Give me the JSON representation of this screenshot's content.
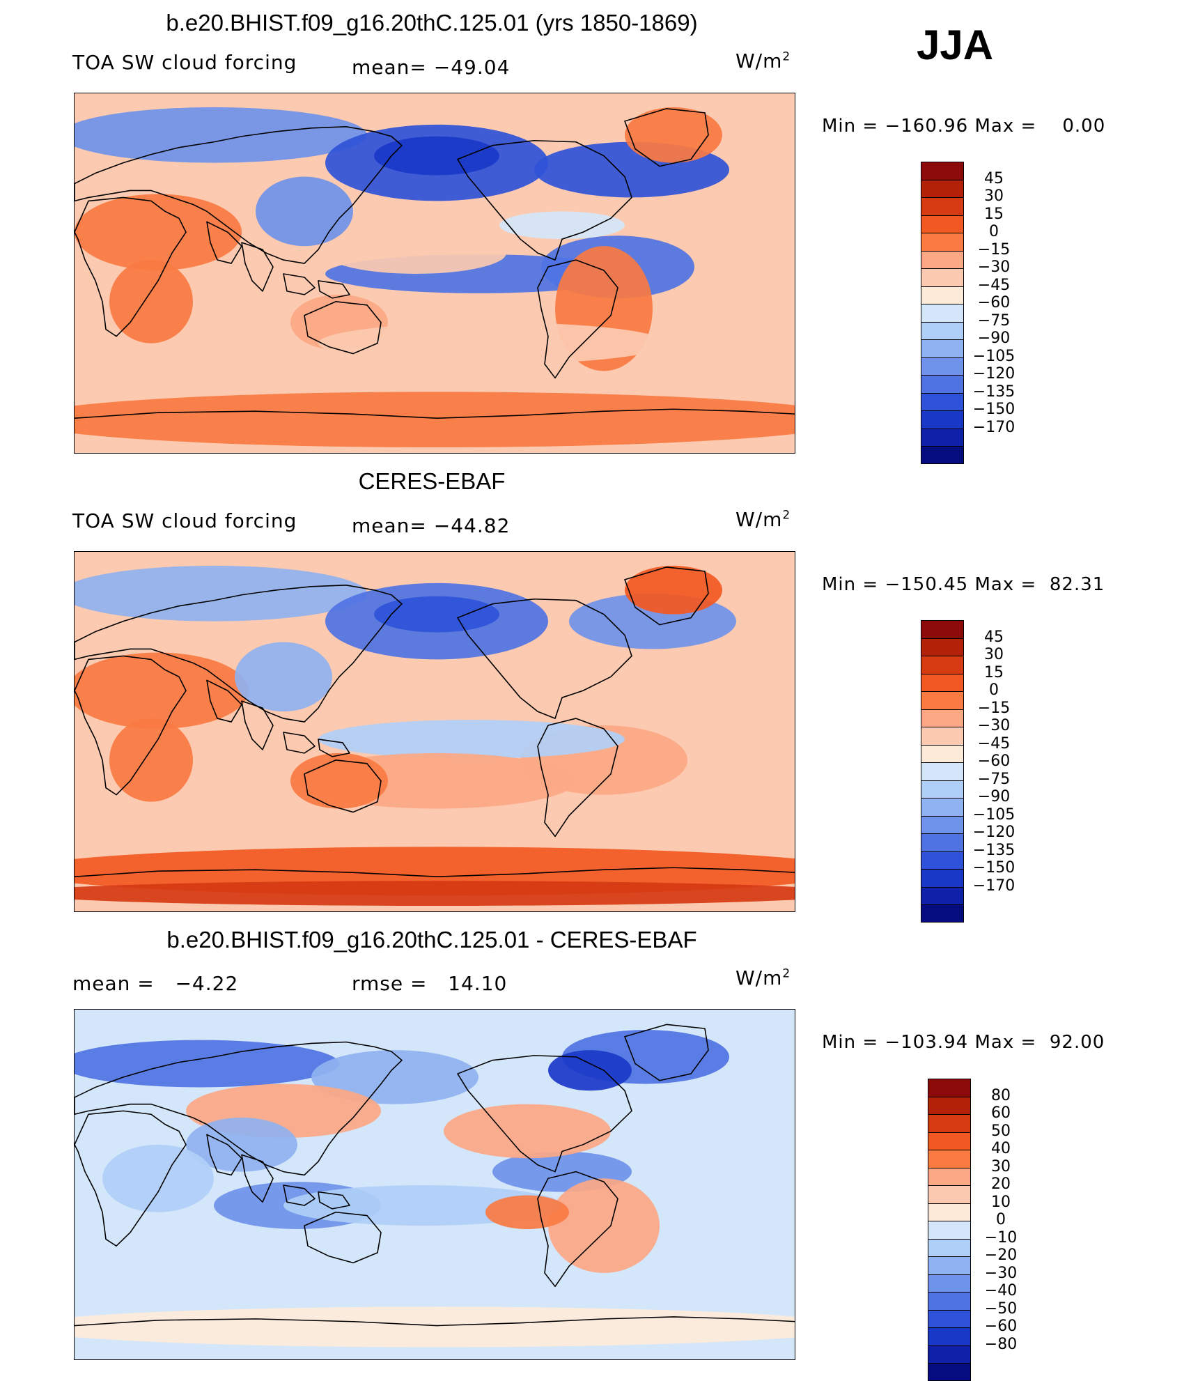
{
  "season": "JJA",
  "units_text": "W/m",
  "units_exp": "2",
  "colors": {
    "full": [
      "#8c0a0a",
      "#b32208",
      "#d63a12",
      "#f25822",
      "#fa7a42",
      "#fca884",
      "#fccab0",
      "#fdebd9",
      "#d4e6fa",
      "#b0cff7",
      "#8fb2f0",
      "#6f92ea",
      "#4f73e3",
      "#2f53d8",
      "#1a38c8",
      "#0e21a8",
      "#050c80"
    ],
    "diff": [
      "#8c0a0a",
      "#b32208",
      "#d63a12",
      "#f25822",
      "#fa7a42",
      "#fca884",
      "#fccab0",
      "#fdebd9",
      "#d4e6fa",
      "#b0cff7",
      "#8fb2f0",
      "#6f92ea",
      "#4f73e3",
      "#2f53d8",
      "#1a38c8",
      "#0e21a8",
      "#050c80"
    ]
  },
  "panels": [
    {
      "title": "b.e20.BHIST.f09_g16.20thC.125.01 (yrs 1850-1869)",
      "left_label": "TOA SW cloud forcing",
      "center_label": "mean= −49.04",
      "min_label": "Min",
      "min_value": "−160.96",
      "max_label": "Max",
      "max_value": "0.00",
      "colorbar_levels": [
        "45",
        "30",
        "15",
        "0",
        "−15",
        "−30",
        "−45",
        "−60",
        "−75",
        "−90",
        "−105",
        "−120",
        "−135",
        "−150",
        "−170"
      ]
    },
    {
      "title": "CERES-EBAF",
      "left_label": "TOA SW cloud forcing",
      "center_label": "mean= −44.82",
      "min_label": "Min",
      "min_value": "−150.45",
      "max_label": "Max",
      "max_value": "82.31",
      "colorbar_levels": [
        "45",
        "30",
        "15",
        "0",
        "−15",
        "−30",
        "−45",
        "−60",
        "−75",
        "−90",
        "−105",
        "−120",
        "−135",
        "−150",
        "−170"
      ]
    },
    {
      "title": "b.e20.BHIST.f09_g16.20thC.125.01 - CERES-EBAF",
      "left_label": "mean =   −4.22",
      "center_label": "rmse =   14.10",
      "min_label": "Min",
      "min_value": "−103.94",
      "max_label": "Max",
      "max_value": "92.00",
      "colorbar_levels": [
        "80",
        "60",
        "50",
        "40",
        "30",
        "20",
        "10",
        "0",
        "−10",
        "−20",
        "−30",
        "−40",
        "−50",
        "−60",
        "−80"
      ]
    }
  ]
}
